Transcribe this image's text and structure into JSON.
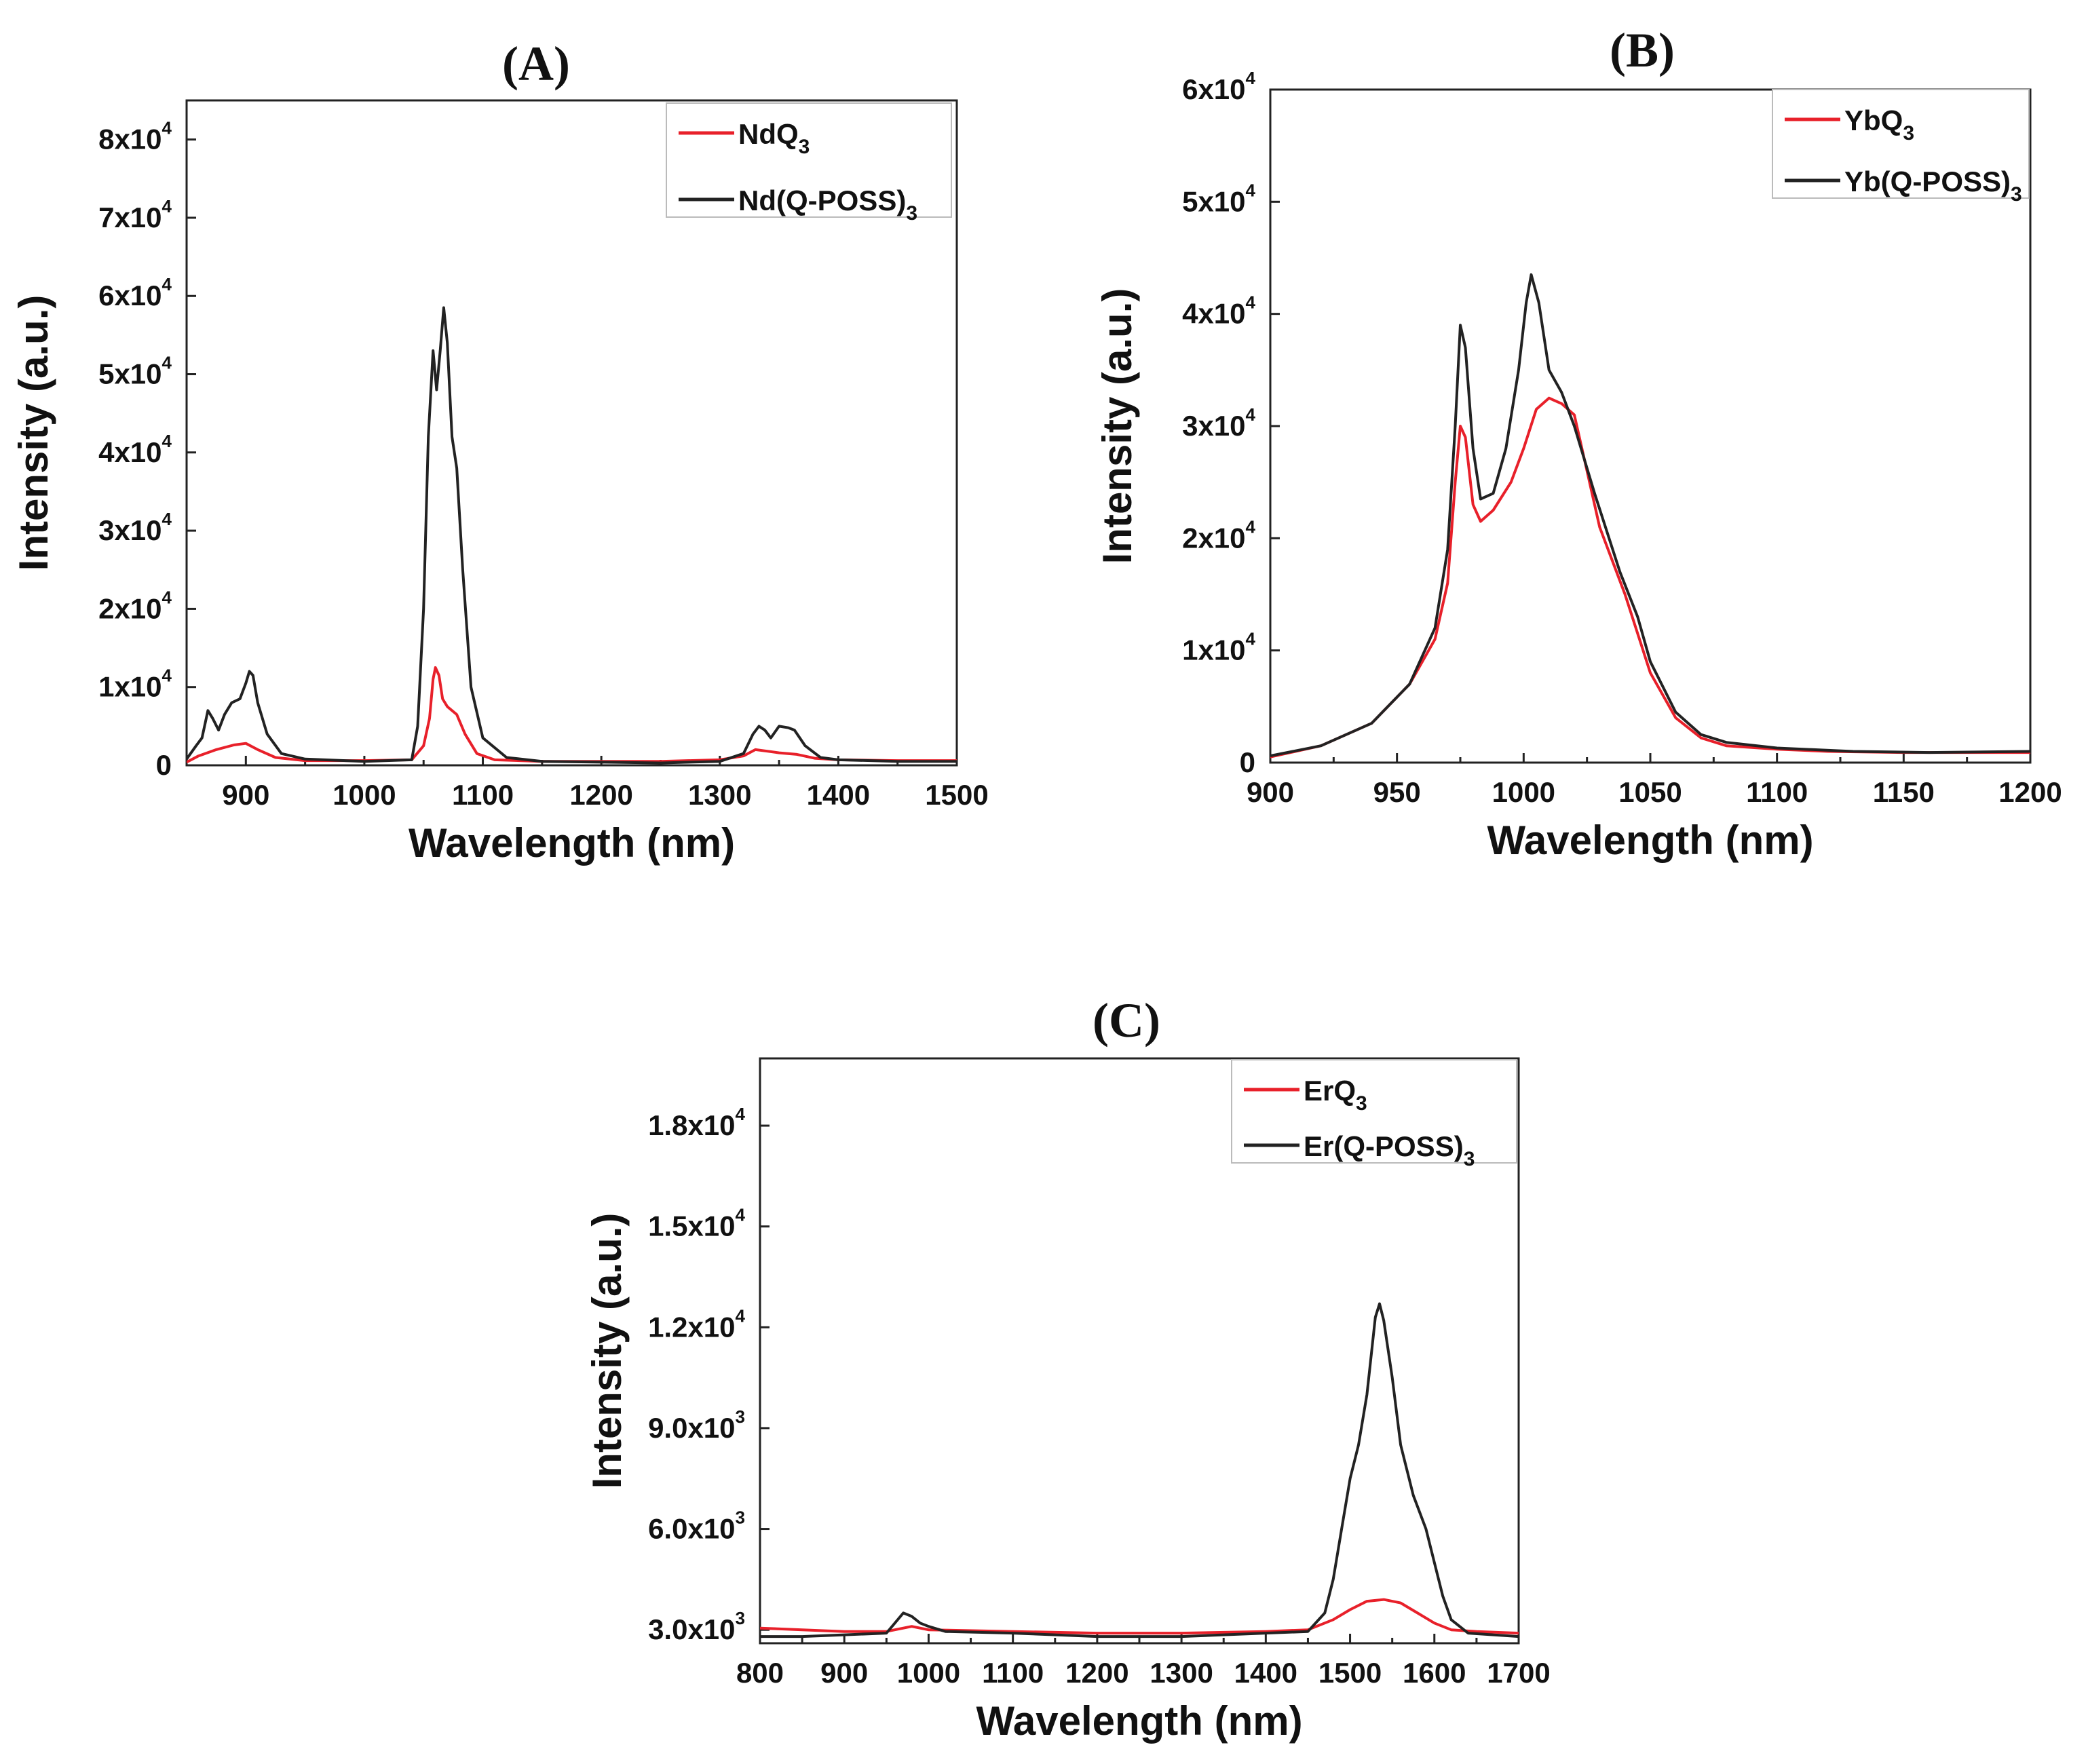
{
  "chart_data": [
    {
      "type": "line",
      "panel_label": "(A)",
      "title": "",
      "xlabel": "Wavelength (nm)",
      "ylabel": "Intensity (a.u.)",
      "xlim": [
        850,
        1500
      ],
      "ylim": [
        0,
        85000
      ],
      "x_ticks": [
        900,
        1000,
        1100,
        1200,
        1300,
        1400,
        1500
      ],
      "x_tick_labels": [
        "900",
        "1000",
        "1100",
        "1200",
        "1300",
        "1400",
        "1500"
      ],
      "y_ticks": [
        0,
        10000,
        20000,
        30000,
        40000,
        50000,
        60000,
        70000,
        80000
      ],
      "y_tick_labels": [
        {
          "m": "0",
          "e": ""
        },
        {
          "m": "1x10",
          "e": "4"
        },
        {
          "m": "2x10",
          "e": "4"
        },
        {
          "m": "3x10",
          "e": "4"
        },
        {
          "m": "4x10",
          "e": "4"
        },
        {
          "m": "5x10",
          "e": "4"
        },
        {
          "m": "6x10",
          "e": "4"
        },
        {
          "m": "7x10",
          "e": "4"
        },
        {
          "m": "8x10",
          "e": "4"
        }
      ],
      "legend_position": "top-right",
      "series": [
        {
          "name": "NdQ",
          "name_sub": "3",
          "color": "#e8202a",
          "points": [
            [
              850,
              400
            ],
            [
              860,
              1200
            ],
            [
              875,
              2000
            ],
            [
              890,
              2600
            ],
            [
              900,
              2800
            ],
            [
              910,
              2000
            ],
            [
              925,
              1000
            ],
            [
              950,
              600
            ],
            [
              1000,
              600
            ],
            [
              1040,
              700
            ],
            [
              1050,
              2500
            ],
            [
              1055,
              6000
            ],
            [
              1058,
              11000
            ],
            [
              1060,
              12500
            ],
            [
              1063,
              11500
            ],
            [
              1066,
              8500
            ],
            [
              1070,
              7500
            ],
            [
              1078,
              6500
            ],
            [
              1085,
              4000
            ],
            [
              1095,
              1500
            ],
            [
              1110,
              700
            ],
            [
              1150,
              500
            ],
            [
              1200,
              500
            ],
            [
              1250,
              500
            ],
            [
              1300,
              700
            ],
            [
              1320,
              1200
            ],
            [
              1330,
              2000
            ],
            [
              1340,
              1800
            ],
            [
              1350,
              1600
            ],
            [
              1365,
              1400
            ],
            [
              1380,
              900
            ],
            [
              1400,
              700
            ],
            [
              1450,
              600
            ],
            [
              1500,
              600
            ]
          ]
        },
        {
          "name": "Nd(Q-POSS)",
          "name_sub": "3",
          "color": "#222222",
          "points": [
            [
              850,
              800
            ],
            [
              858,
              2500
            ],
            [
              863,
              3500
            ],
            [
              868,
              7000
            ],
            [
              872,
              6000
            ],
            [
              877,
              4500
            ],
            [
              882,
              6500
            ],
            [
              888,
              8000
            ],
            [
              895,
              8500
            ],
            [
              900,
              10500
            ],
            [
              903,
              12000
            ],
            [
              906,
              11500
            ],
            [
              910,
              8000
            ],
            [
              918,
              4000
            ],
            [
              930,
              1500
            ],
            [
              950,
              800
            ],
            [
              1000,
              500
            ],
            [
              1040,
              700
            ],
            [
              1045,
              5000
            ],
            [
              1050,
              20000
            ],
            [
              1054,
              42000
            ],
            [
              1058,
              53000
            ],
            [
              1061,
              48000
            ],
            [
              1064,
              53000
            ],
            [
              1067,
              58500
            ],
            [
              1070,
              54000
            ],
            [
              1074,
              42000
            ],
            [
              1078,
              38000
            ],
            [
              1083,
              25000
            ],
            [
              1090,
              10000
            ],
            [
              1100,
              3500
            ],
            [
              1120,
              1000
            ],
            [
              1150,
              500
            ],
            [
              1200,
              400
            ],
            [
              1250,
              300
            ],
            [
              1300,
              500
            ],
            [
              1320,
              1500
            ],
            [
              1328,
              4000
            ],
            [
              1333,
              5000
            ],
            [
              1338,
              4500
            ],
            [
              1343,
              3500
            ],
            [
              1350,
              5000
            ],
            [
              1358,
              4800
            ],
            [
              1363,
              4500
            ],
            [
              1372,
              2500
            ],
            [
              1385,
              1000
            ],
            [
              1400,
              700
            ],
            [
              1450,
              500
            ],
            [
              1500,
              500
            ]
          ]
        }
      ]
    },
    {
      "type": "line",
      "panel_label": "(B)",
      "title": "",
      "xlabel": "Wavelength (nm)",
      "ylabel": "Intensity (a.u.)",
      "xlim": [
        900,
        1200
      ],
      "ylim": [
        0,
        60000
      ],
      "x_ticks": [
        900,
        950,
        1000,
        1050,
        1100,
        1150,
        1200
      ],
      "x_tick_labels": [
        "900",
        "950",
        "1000",
        "1050",
        "1100",
        "1150",
        "1200"
      ],
      "y_ticks": [
        0,
        10000,
        20000,
        30000,
        40000,
        50000,
        60000
      ],
      "y_tick_labels": [
        {
          "m": "0",
          "e": ""
        },
        {
          "m": "1x10",
          "e": "4"
        },
        {
          "m": "2x10",
          "e": "4"
        },
        {
          "m": "3x10",
          "e": "4"
        },
        {
          "m": "4x10",
          "e": "4"
        },
        {
          "m": "5x10",
          "e": "4"
        },
        {
          "m": "6x10",
          "e": "4"
        }
      ],
      "legend_position": "top-right",
      "series": [
        {
          "name": "YbQ",
          "name_sub": "3",
          "color": "#e8202a",
          "points": [
            [
              900,
              500
            ],
            [
              920,
              1500
            ],
            [
              940,
              3500
            ],
            [
              955,
              7000
            ],
            [
              965,
              11000
            ],
            [
              970,
              16000
            ],
            [
              973,
              25000
            ],
            [
              975,
              30000
            ],
            [
              977,
              29000
            ],
            [
              980,
              23000
            ],
            [
              983,
              21500
            ],
            [
              988,
              22500
            ],
            [
              995,
              25000
            ],
            [
              1000,
              28000
            ],
            [
              1005,
              31500
            ],
            [
              1010,
              32500
            ],
            [
              1015,
              32000
            ],
            [
              1020,
              31000
            ],
            [
              1025,
              26000
            ],
            [
              1030,
              21000
            ],
            [
              1040,
              15000
            ],
            [
              1050,
              8000
            ],
            [
              1060,
              4000
            ],
            [
              1070,
              2200
            ],
            [
              1080,
              1500
            ],
            [
              1100,
              1200
            ],
            [
              1120,
              1000
            ],
            [
              1150,
              900
            ],
            [
              1200,
              900
            ]
          ]
        },
        {
          "name": "Yb(Q-POSS)",
          "name_sub": "3",
          "color": "#222222",
          "points": [
            [
              900,
              600
            ],
            [
              920,
              1500
            ],
            [
              940,
              3500
            ],
            [
              955,
              7000
            ],
            [
              965,
              12000
            ],
            [
              970,
              19000
            ],
            [
              973,
              30000
            ],
            [
              975,
              39000
            ],
            [
              977,
              37000
            ],
            [
              980,
              28000
            ],
            [
              983,
              23500
            ],
            [
              988,
              24000
            ],
            [
              993,
              28000
            ],
            [
              998,
              35000
            ],
            [
              1001,
              41000
            ],
            [
              1003,
              43500
            ],
            [
              1006,
              41000
            ],
            [
              1010,
              35000
            ],
            [
              1015,
              33000
            ],
            [
              1020,
              30000
            ],
            [
              1028,
              24000
            ],
            [
              1038,
              17000
            ],
            [
              1045,
              13000
            ],
            [
              1050,
              9000
            ],
            [
              1060,
              4500
            ],
            [
              1070,
              2500
            ],
            [
              1080,
              1800
            ],
            [
              1100,
              1300
            ],
            [
              1130,
              1000
            ],
            [
              1160,
              900
            ],
            [
              1200,
              1000
            ]
          ]
        }
      ]
    },
    {
      "type": "line",
      "panel_label": "(C)",
      "title": "",
      "xlabel": "Wavelength (nm)",
      "ylabel": "Intensity (a.u.)",
      "xlim": [
        800,
        1700
      ],
      "ylim": [
        2600,
        20000
      ],
      "x_ticks": [
        800,
        900,
        1000,
        1100,
        1200,
        1300,
        1400,
        1500,
        1600,
        1700
      ],
      "x_tick_labels": [
        "800",
        "900",
        "1000",
        "1100",
        "1200",
        "1300",
        "1400",
        "1500",
        "1600",
        "1700"
      ],
      "y_ticks": [
        3000,
        6000,
        9000,
        12000,
        15000,
        18000
      ],
      "y_tick_labels": [
        {
          "m": "3.0x10",
          "e": "3"
        },
        {
          "m": "6.0x10",
          "e": "3"
        },
        {
          "m": "9.0x10",
          "e": "3"
        },
        {
          "m": "1.2x10",
          "e": "4"
        },
        {
          "m": "1.5x10",
          "e": "4"
        },
        {
          "m": "1.8x10",
          "e": "4"
        }
      ],
      "legend_position": "top-right",
      "series": [
        {
          "name": "ErQ",
          "name_sub": "3",
          "color": "#e8202a",
          "points": [
            [
              800,
              3050
            ],
            [
              850,
              3000
            ],
            [
              900,
              2950
            ],
            [
              950,
              2950
            ],
            [
              980,
              3100
            ],
            [
              1000,
              3000
            ],
            [
              1100,
              2950
            ],
            [
              1200,
              2900
            ],
            [
              1300,
              2900
            ],
            [
              1400,
              2950
            ],
            [
              1450,
              3000
            ],
            [
              1480,
              3300
            ],
            [
              1500,
              3600
            ],
            [
              1520,
              3850
            ],
            [
              1540,
              3900
            ],
            [
              1560,
              3800
            ],
            [
              1580,
              3500
            ],
            [
              1600,
              3200
            ],
            [
              1620,
              3000
            ],
            [
              1650,
              2950
            ],
            [
              1700,
              2900
            ]
          ]
        },
        {
          "name": "Er(Q-POSS)",
          "name_sub": "3",
          "color": "#222222",
          "points": [
            [
              800,
              2800
            ],
            [
              850,
              2800
            ],
            [
              900,
              2850
            ],
            [
              950,
              2900
            ],
            [
              970,
              3500
            ],
            [
              980,
              3400
            ],
            [
              990,
              3200
            ],
            [
              1000,
              3100
            ],
            [
              1020,
              2950
            ],
            [
              1100,
              2900
            ],
            [
              1200,
              2800
            ],
            [
              1300,
              2800
            ],
            [
              1400,
              2900
            ],
            [
              1450,
              2950
            ],
            [
              1470,
              3500
            ],
            [
              1480,
              4500
            ],
            [
              1490,
              6000
            ],
            [
              1500,
              7500
            ],
            [
              1510,
              8500
            ],
            [
              1520,
              10000
            ],
            [
              1530,
              12300
            ],
            [
              1535,
              12700
            ],
            [
              1540,
              12200
            ],
            [
              1550,
              10500
            ],
            [
              1560,
              8500
            ],
            [
              1575,
              7000
            ],
            [
              1590,
              6000
            ],
            [
              1600,
              5000
            ],
            [
              1610,
              4000
            ],
            [
              1620,
              3300
            ],
            [
              1640,
              2900
            ],
            [
              1700,
              2800
            ]
          ]
        }
      ]
    }
  ]
}
